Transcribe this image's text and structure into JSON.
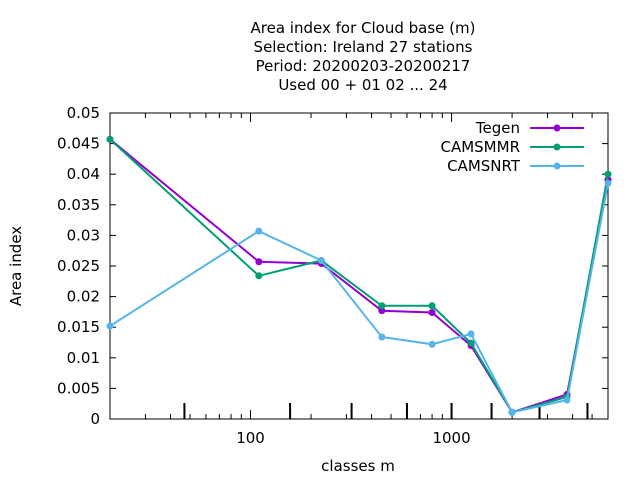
{
  "chart_data": {
    "type": "line",
    "title_lines": [
      "Area index  for Cloud base (m)",
      "Selection: Ireland     27 stations",
      "Period: 20200203-20200217",
      "Used  00  + 01 02 ... 24"
    ],
    "xlabel": "classes m",
    "ylabel": "Area index",
    "x_scale": "log",
    "xlim": [
      20,
      6000
    ],
    "ylim": [
      0,
      0.05
    ],
    "x_tick_labels": [
      "100",
      "1000"
    ],
    "y_tick_labels": [
      "0",
      "0.005",
      "0.01",
      "0.015",
      "0.02",
      "0.025",
      "0.03",
      "0.035",
      "0.04",
      "0.045",
      "0.05"
    ],
    "grid": false,
    "legend_position": "top-right",
    "x": [
      20,
      110,
      225,
      450,
      800,
      1250,
      2000,
      3750,
      6000
    ],
    "series": [
      {
        "name": "Tegen",
        "color": "#9400d3",
        "values": [
          0.0457,
          0.0257,
          0.0254,
          0.0177,
          0.0174,
          0.012,
          0.0011,
          0.004,
          0.0391
        ]
      },
      {
        "name": "CAMSMMR",
        "color": "#009e73",
        "values": [
          0.0457,
          0.0234,
          0.0259,
          0.0185,
          0.0185,
          0.0124,
          0.0011,
          0.0036,
          0.04
        ]
      },
      {
        "name": "CAMSNRT",
        "color": "#56b4e9",
        "values": [
          0.0152,
          0.0307,
          0.0259,
          0.0134,
          0.0122,
          0.0139,
          0.0011,
          0.0031,
          0.0385
        ]
      }
    ]
  }
}
